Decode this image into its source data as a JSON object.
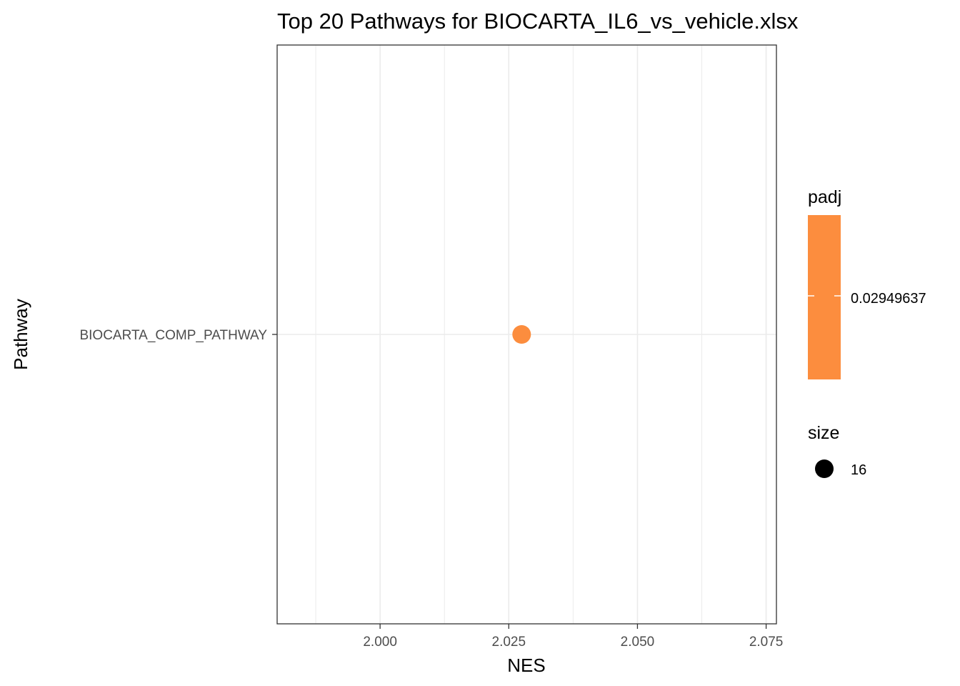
{
  "chart_data": {
    "type": "scatter",
    "title": "Top 20 Pathways for  BIOCARTA_IL6_vs_vehicle.xlsx",
    "xlabel": "NES",
    "ylabel": "Pathway",
    "xlim": [
      1.98,
      2.077
    ],
    "x_ticks": [
      "2.000",
      "2.025",
      "2.050",
      "2.075"
    ],
    "x_tick_values": [
      2.0,
      2.025,
      2.05,
      2.075
    ],
    "categories": [
      "BIOCARTA_COMP_PATHWAY"
    ],
    "points": [
      {
        "pathway": "BIOCARTA_COMP_PATHWAY",
        "nes": 2.0275,
        "padj": 0.02949637,
        "size": 16
      }
    ],
    "grid": true,
    "legend_position": "right",
    "legends": {
      "color": {
        "title": "padj",
        "label": "0.02949637",
        "color": "#fc8d3e"
      },
      "size": {
        "title": "size",
        "label": "16",
        "color": "#000000"
      }
    }
  }
}
